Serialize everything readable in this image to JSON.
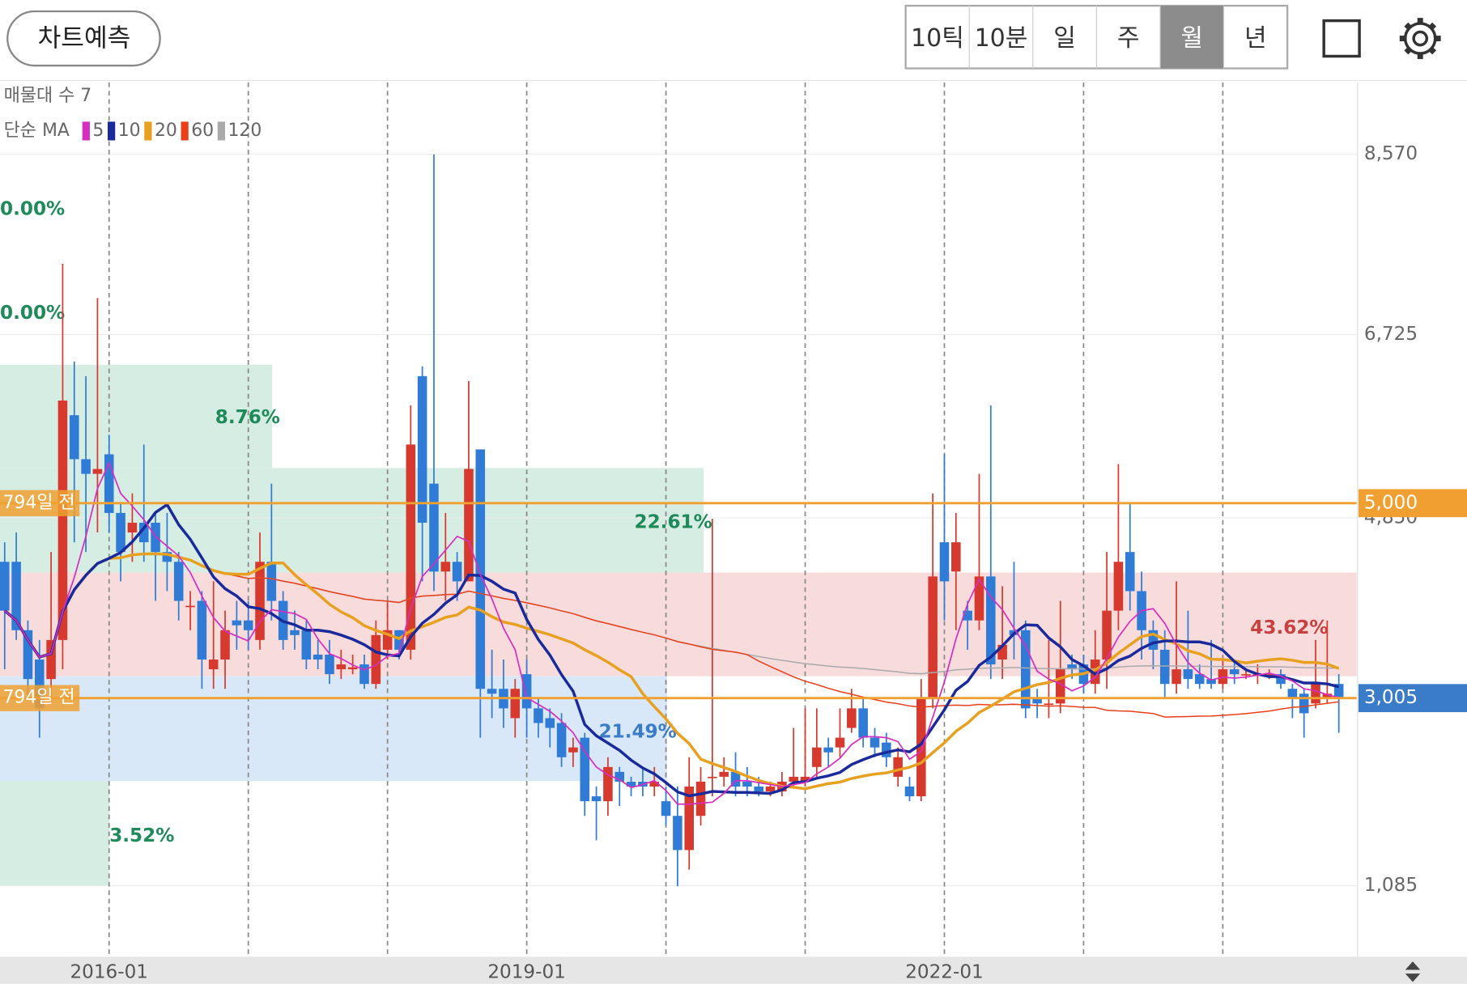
{
  "header": {
    "button": "차트예측",
    "tabs": [
      "10틱",
      "10분",
      "일",
      "주",
      "월",
      "년"
    ],
    "selected_tab": 4
  },
  "chart_data": {
    "type": "candlestick",
    "legend": {
      "depth": "매물대 수 7",
      "ma_title": "단순 MA",
      "ma": [
        {
          "period": 5,
          "color": "#d62fc0"
        },
        {
          "period": 10,
          "color": "#1a2a9a"
        },
        {
          "period": 20,
          "color": "#e8a020"
        },
        {
          "period": 60,
          "color": "#e8401a"
        },
        {
          "period": 120,
          "color": "#aaaaaa"
        }
      ]
    },
    "up_color": "#d63a2f",
    "down_color": "#2f7bd6",
    "ylim": [
      358,
      9306
    ],
    "yticks": [
      {
        "value": 1085,
        "label": "1,085"
      },
      {
        "value": 4850,
        "label": "4,850"
      },
      {
        "value": 6725,
        "label": "6,725"
      },
      {
        "value": 8570,
        "label": "8,570"
      }
    ],
    "hlines": [
      {
        "value": 5000,
        "label": "5,000",
        "left_label": "794일 전",
        "color": "#f0a030"
      },
      {
        "value": 3005,
        "label": "3,005",
        "left_label": "794일 전",
        "color": "#3a7cc8"
      }
    ],
    "zones": [
      {
        "label": "8.76%",
        "high": 6416,
        "low": 5360,
        "color": "#d6ede3",
        "text_color": "#1e8a5a"
      },
      {
        "label": "22.61%",
        "high": 5360,
        "low": 4290,
        "color": "#d6ede3",
        "text_color": "#1e8a5a"
      },
      {
        "label": "43.62%",
        "high": 4290,
        "low": 3229,
        "color": "#f8dcdc",
        "text_color": "#c84040"
      },
      {
        "label": "21.49%",
        "high": 3229,
        "low": 2157,
        "color": "#d8e8f8",
        "text_color": "#3a7cc8"
      },
      {
        "label": "3.52%",
        "high": 2157,
        "low": 1085,
        "color": "#d6ede3",
        "text_color": "#1e8a5a"
      }
    ],
    "annotations": [
      "0.00%",
      "0.00%"
    ],
    "categories": [
      null,
      null,
      null,
      null,
      null,
      null,
      null,
      null,
      null,
      "2016-01",
      null,
      null,
      null,
      null,
      null,
      null,
      null,
      null,
      null,
      null,
      null,
      null,
      null,
      null,
      null,
      null,
      null,
      null,
      null,
      null,
      null,
      null,
      null,
      null,
      null,
      null,
      null,
      null,
      null,
      null,
      null,
      null,
      null,
      null,
      null,
      "2019-01",
      null,
      null,
      null,
      null,
      null,
      null,
      null,
      null,
      null,
      null,
      null,
      null,
      null,
      null,
      null,
      null,
      null,
      null,
      null,
      null,
      null,
      null,
      null,
      null,
      null,
      null,
      null,
      null,
      null,
      null,
      null,
      null,
      null,
      null,
      null,
      "2022-01",
      null,
      null,
      null,
      null,
      null,
      null,
      null,
      null,
      null,
      null,
      null,
      null,
      null,
      null,
      null,
      null,
      null,
      null,
      null,
      null,
      null,
      null,
      null,
      null,
      null,
      null,
      null,
      null,
      null,
      null,
      null,
      null,
      null,
      null
    ],
    "values": [
      [
        4400,
        4600,
        3300,
        3900
      ],
      [
        4400,
        4700,
        3600,
        3700
      ],
      [
        3700,
        3800,
        3000,
        3200
      ],
      [
        3400,
        3600,
        2600,
        2900
      ],
      [
        3200,
        4500,
        3000,
        3600
      ],
      [
        3600,
        7450,
        3300,
        6050
      ],
      [
        5900,
        6450,
        4600,
        5450
      ],
      [
        5450,
        6300,
        4500,
        5300
      ],
      [
        5300,
        7100,
        4700,
        5350
      ],
      [
        5500,
        5700,
        4700,
        4900
      ],
      [
        4900,
        5000,
        4200,
        4500
      ],
      [
        4700,
        5100,
        4400,
        4800
      ],
      [
        4800,
        5600,
        4400,
        4600
      ],
      [
        4800,
        4900,
        4000,
        4500
      ],
      [
        4500,
        4900,
        4100,
        4400
      ],
      [
        4400,
        4500,
        3800,
        4000
      ],
      [
        3950,
        4100,
        3700,
        3950
      ],
      [
        4000,
        4100,
        3100,
        3400
      ],
      [
        3300,
        4200,
        3100,
        3400
      ],
      [
        3400,
        3900,
        3100,
        3700
      ],
      [
        3800,
        4000,
        3500,
        3750
      ],
      [
        3800,
        4000,
        3500,
        3700
      ],
      [
        3600,
        4700,
        3500,
        4400
      ],
      [
        4400,
        5200,
        3800,
        4000
      ],
      [
        4000,
        4100,
        3500,
        3600
      ],
      [
        3700,
        3900,
        3500,
        3650
      ],
      [
        3700,
        3800,
        3300,
        3400
      ],
      [
        3450,
        3600,
        3300,
        3400
      ],
      [
        3450,
        3600,
        3150,
        3250
      ],
      [
        3300,
        3500,
        3200,
        3350
      ],
      [
        3300,
        3450,
        3250,
        3320
      ],
      [
        3350,
        3450,
        3100,
        3150
      ],
      [
        3150,
        3800,
        3100,
        3650
      ],
      [
        3500,
        4000,
        3400,
        3700
      ],
      [
        3700,
        3700,
        3400,
        3500
      ],
      [
        3500,
        6000,
        3400,
        5600
      ],
      [
        6300,
        6400,
        4200,
        4800
      ],
      [
        5200,
        8570,
        4100,
        4300
      ],
      [
        4300,
        4900,
        4000,
        4400
      ],
      [
        4400,
        4500,
        4000,
        4200
      ],
      [
        4200,
        6250,
        4200,
        5350
      ],
      [
        5550,
        5550,
        2600,
        3100
      ],
      [
        3100,
        3500,
        2800,
        3050
      ],
      [
        3100,
        3400,
        2700,
        2900
      ],
      [
        2800,
        3200,
        2600,
        3100
      ],
      [
        3250,
        3400,
        2600,
        2900
      ],
      [
        2900,
        3000,
        2600,
        2750
      ],
      [
        2800,
        2900,
        2500,
        2700
      ],
      [
        2750,
        2850,
        2300,
        2400
      ],
      [
        2450,
        2600,
        2300,
        2500
      ],
      [
        2600,
        2650,
        1800,
        1950
      ],
      [
        2000,
        2100,
        1550,
        1950
      ],
      [
        1950,
        2400,
        1800,
        2300
      ],
      [
        2250,
        2300,
        1900,
        2150
      ],
      [
        2150,
        2200,
        2000,
        2100
      ],
      [
        2150,
        2300,
        2000,
        2100
      ],
      [
        2100,
        2300,
        2000,
        2150
      ],
      [
        1950,
        2100,
        1700,
        1800
      ],
      [
        1800,
        2100,
        1080,
        1450
      ],
      [
        1450,
        2400,
        1250,
        2100
      ],
      [
        1800,
        2300,
        1700,
        2150
      ],
      [
        2200,
        4840,
        2000,
        2200
      ],
      [
        2200,
        2400,
        2100,
        2250
      ],
      [
        2250,
        2450,
        2000,
        2100
      ],
      [
        2150,
        2300,
        2000,
        2100
      ],
      [
        2100,
        2200,
        2000,
        2050
      ],
      [
        2050,
        2150,
        2000,
        2100
      ],
      [
        2050,
        2250,
        2000,
        2150
      ],
      [
        2150,
        2700,
        2100,
        2200
      ],
      [
        2150,
        2900,
        2100,
        2200
      ],
      [
        2300,
        2900,
        2200,
        2500
      ],
      [
        2500,
        2600,
        2300,
        2450
      ],
      [
        2500,
        2900,
        2400,
        2600
      ],
      [
        2700,
        3100,
        2650,
        2900
      ],
      [
        2900,
        3000,
        2500,
        2600
      ],
      [
        2600,
        2700,
        2400,
        2500
      ],
      [
        2550,
        2650,
        2300,
        2400
      ],
      [
        2200,
        2500,
        2100,
        2400
      ],
      [
        2100,
        2200,
        1950,
        2000
      ],
      [
        2000,
        3200,
        1950,
        3000
      ],
      [
        3000,
        5100,
        2900,
        4250
      ],
      [
        4600,
        5500,
        3800,
        4200
      ],
      [
        4300,
        4900,
        3700,
        4600
      ],
      [
        3900,
        4000,
        3500,
        3800
      ],
      [
        3800,
        5300,
        3700,
        4250
      ],
      [
        4250,
        6000,
        3200,
        3350
      ],
      [
        3400,
        4150,
        3200,
        3550
      ],
      [
        3700,
        4400,
        3400,
        3650
      ],
      [
        3700,
        3800,
        2800,
        2900
      ],
      [
        3000,
        3100,
        2800,
        2950
      ],
      [
        2950,
        3600,
        2800,
        2950
      ],
      [
        2950,
        4000,
        2850,
        3300
      ],
      [
        3350,
        3450,
        3200,
        3300
      ],
      [
        3350,
        3450,
        3050,
        3150
      ],
      [
        3150,
        3700,
        3050,
        3400
      ],
      [
        3400,
        4500,
        3100,
        3900
      ],
      [
        3900,
        5400,
        3700,
        4400
      ],
      [
        4500,
        5000,
        3900,
        4100
      ],
      [
        4100,
        4300,
        3400,
        3700
      ],
      [
        3700,
        3800,
        3300,
        3500
      ],
      [
        3500,
        3700,
        3000,
        3150
      ],
      [
        3150,
        4200,
        3050,
        3300
      ],
      [
        3300,
        3900,
        3100,
        3200
      ],
      [
        3250,
        3350,
        3100,
        3150
      ],
      [
        3200,
        3600,
        3100,
        3150
      ],
      [
        3150,
        3400,
        3100,
        3300
      ],
      [
        3300,
        3400,
        3150,
        3250
      ],
      [
        3250,
        3300,
        3200,
        3250
      ],
      [
        3250,
        3350,
        3150,
        3250
      ],
      [
        3250,
        3300,
        3200,
        3250
      ],
      [
        3250,
        3300,
        3100,
        3150
      ],
      [
        3100,
        3150,
        2800,
        3000
      ],
      [
        3050,
        3100,
        2600,
        2850
      ],
      [
        2950,
        3600,
        2900,
        3150
      ],
      [
        3000,
        3800,
        2950,
        3050
      ],
      [
        3150,
        3250,
        2650,
        3005
      ]
    ]
  }
}
